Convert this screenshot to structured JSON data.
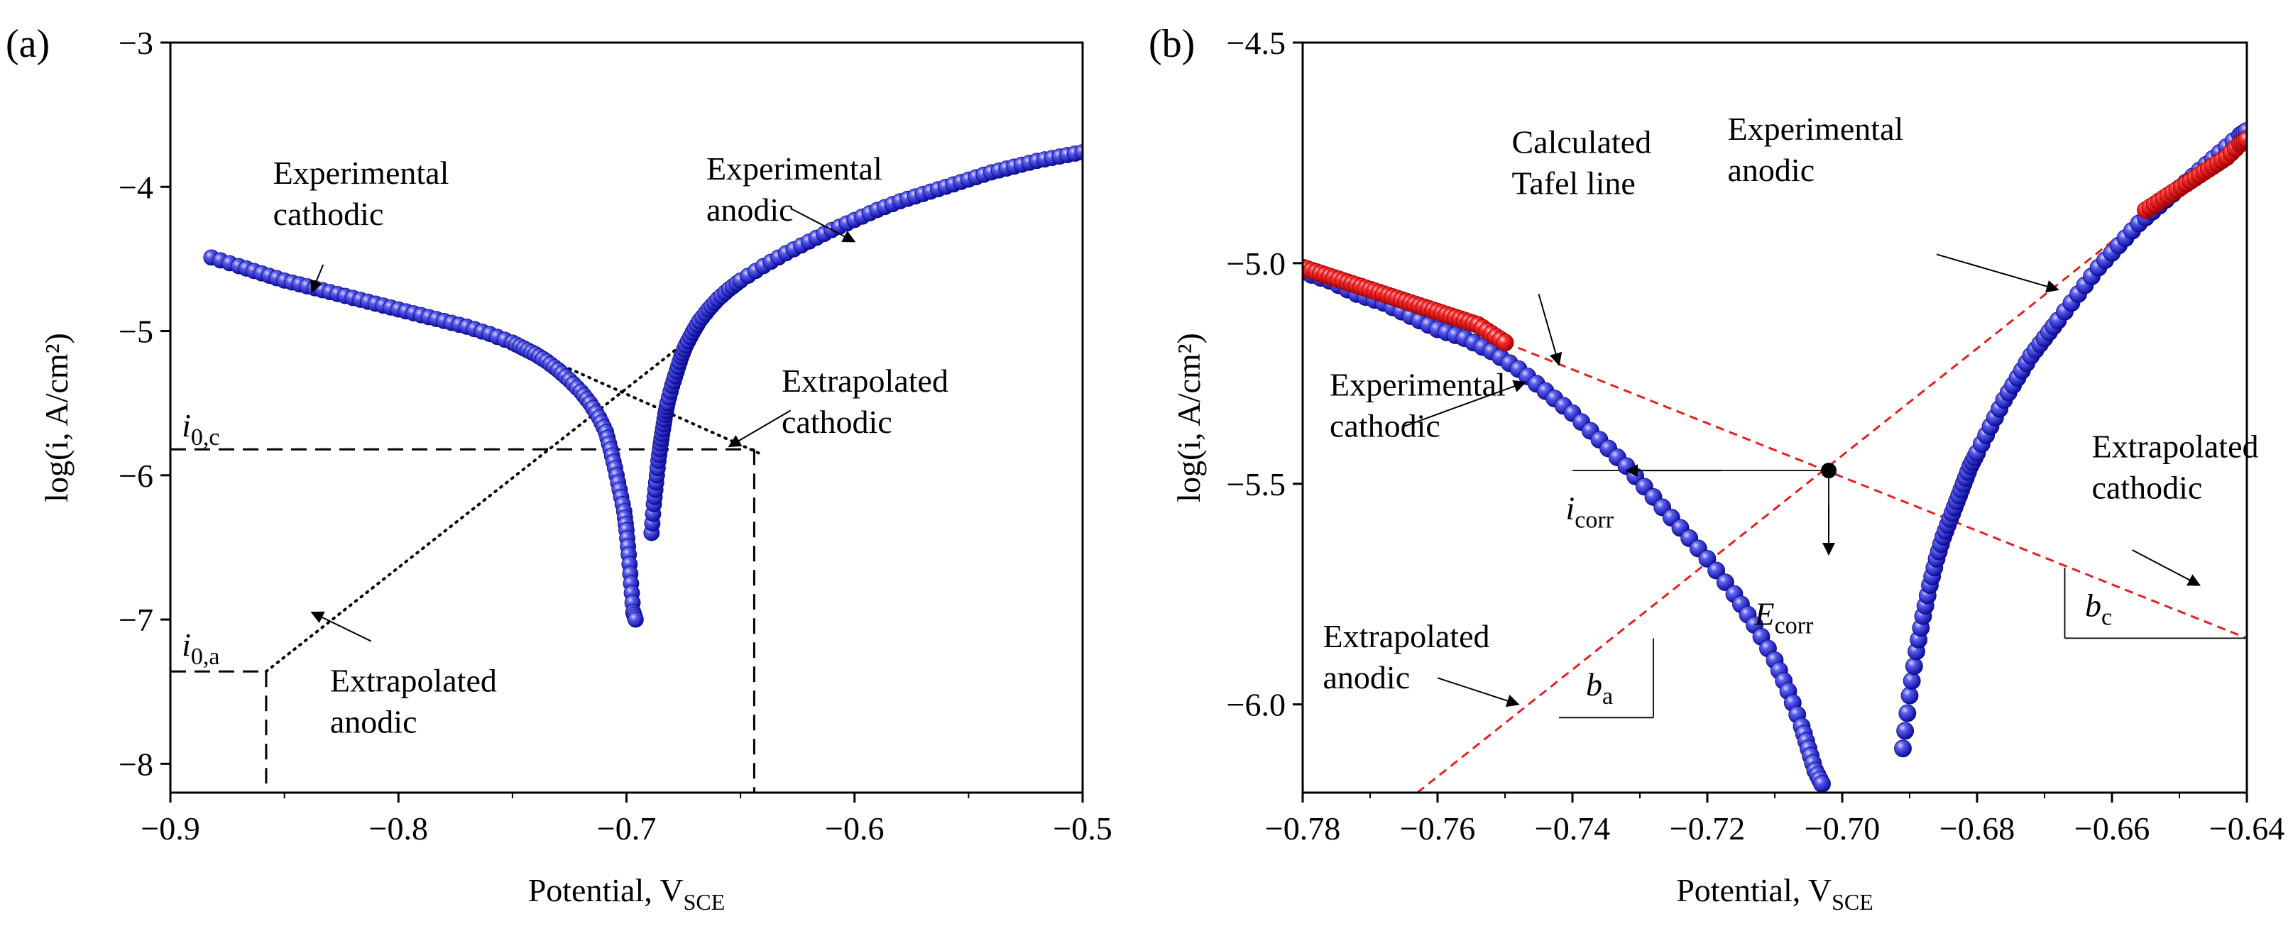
{
  "chart_data": [
    {
      "panel_label": "(a)",
      "type": "scatter",
      "xlabel": "Potential, V",
      "xlabel_sub": "SCE",
      "ylabel": "log(i, A/cm²)",
      "xlim": [
        -0.9,
        -0.5
      ],
      "ylim": [
        -8.2,
        -3
      ],
      "xticks": [
        -0.9,
        -0.8,
        -0.7,
        -0.6,
        -0.5
      ],
      "xtick_labels": [
        "−0.9",
        "−0.8",
        "−0.7",
        "−0.6",
        "−0.5"
      ],
      "yticks": [
        -3,
        -4,
        -5,
        -6,
        -7,
        -8
      ],
      "ytick_labels": [
        "−3",
        "−4",
        "−5",
        "−6",
        "−7",
        "−8"
      ],
      "series": [
        {
          "name": "Experimental cathodic",
          "color": "#2b2bd9",
          "x": [
            -0.882,
            -0.87,
            -0.86,
            -0.85,
            -0.84,
            -0.83,
            -0.82,
            -0.81,
            -0.8,
            -0.79,
            -0.78,
            -0.77,
            -0.76,
            -0.75,
            -0.745,
            -0.74,
            -0.735,
            -0.73,
            -0.725,
            -0.72,
            -0.716,
            -0.712,
            -0.709,
            -0.707,
            -0.705,
            -0.703,
            -0.701,
            -0.7,
            -0.699,
            -0.698,
            -0.697,
            -0.696
          ],
          "y": [
            -4.49,
            -4.55,
            -4.6,
            -4.65,
            -4.69,
            -4.73,
            -4.77,
            -4.81,
            -4.85,
            -4.89,
            -4.93,
            -4.97,
            -5.02,
            -5.08,
            -5.12,
            -5.16,
            -5.21,
            -5.27,
            -5.34,
            -5.42,
            -5.5,
            -5.6,
            -5.7,
            -5.82,
            -5.95,
            -6.1,
            -6.25,
            -6.38,
            -6.55,
            -6.75,
            -6.95,
            -7.0
          ]
        },
        {
          "name": "Experimental anodic",
          "color": "#2b2bd9",
          "x": [
            -0.689,
            -0.688,
            -0.687,
            -0.686,
            -0.685,
            -0.684,
            -0.683,
            -0.682,
            -0.68,
            -0.678,
            -0.676,
            -0.674,
            -0.671,
            -0.668,
            -0.664,
            -0.66,
            -0.655,
            -0.65,
            -0.64,
            -0.63,
            -0.62,
            -0.61,
            -0.6,
            -0.59,
            -0.58,
            -0.57,
            -0.56,
            -0.55,
            -0.54,
            -0.53,
            -0.52,
            -0.51,
            -0.5
          ],
          "y": [
            -6.4,
            -6.2,
            -6.05,
            -5.9,
            -5.78,
            -5.68,
            -5.58,
            -5.5,
            -5.38,
            -5.28,
            -5.18,
            -5.1,
            -5.01,
            -4.93,
            -4.85,
            -4.78,
            -4.71,
            -4.65,
            -4.55,
            -4.46,
            -4.38,
            -4.3,
            -4.23,
            -4.16,
            -4.1,
            -4.05,
            -4.0,
            -3.95,
            -3.9,
            -3.86,
            -3.82,
            -3.79,
            -3.76
          ]
        }
      ],
      "lines": [
        {
          "name": "extrapolated-cathodic-line",
          "style": "dotted",
          "x1": -0.745,
          "y1": -5.12,
          "x2": -0.64,
          "y2": -5.86
        },
        {
          "name": "extrapolated-anodic-line",
          "style": "dotted",
          "x1": -0.858,
          "y1": -7.36,
          "x2": -0.672,
          "y2": -5.05
        },
        {
          "name": "i0c-hline",
          "style": "dashed",
          "x1": -0.9,
          "y1": -5.82,
          "x2": -0.644,
          "y2": -5.82
        },
        {
          "name": "i0c-vline",
          "style": "dashed",
          "x1": -0.644,
          "y1": -5.82,
          "x2": -0.644,
          "y2": -8.2
        },
        {
          "name": "i0a-hline",
          "style": "dashed",
          "x1": -0.9,
          "y1": -7.36,
          "x2": -0.858,
          "y2": -7.36
        },
        {
          "name": "i0a-vline",
          "style": "dashed",
          "x1": -0.858,
          "y1": -7.36,
          "x2": -0.858,
          "y2": -8.2
        }
      ],
      "annotations": [
        {
          "name": "label-experimental-cathodic",
          "lines": [
            "Experimental",
            "cathodic"
          ],
          "x": -0.855,
          "y": -3.98,
          "anchor": "start"
        },
        {
          "name": "label-experimental-anodic",
          "lines": [
            "Experimental",
            "anodic"
          ],
          "x": -0.665,
          "y": -3.95,
          "anchor": "start"
        },
        {
          "name": "label-extrapolated-cathodic",
          "lines": [
            "Extrapolated",
            "cathodic"
          ],
          "x": -0.632,
          "y": -5.42,
          "anchor": "start"
        },
        {
          "name": "label-extrapolated-anodic",
          "lines": [
            "Extrapolated",
            "anodic"
          ],
          "x": -0.83,
          "y": -7.5,
          "anchor": "start"
        },
        {
          "name": "label-i0c",
          "main": "i",
          "sub": "0,c",
          "x": -0.895,
          "y": -5.73
        },
        {
          "name": "label-i0a",
          "main": "i",
          "sub": "0,a",
          "x": -0.895,
          "y": -7.25
        }
      ],
      "arrows": [
        {
          "name": "arrow-exp-cathodic",
          "x1": -0.833,
          "y1": -4.54,
          "x2": -0.838,
          "y2": -4.73
        },
        {
          "name": "arrow-exp-anodic",
          "x1": -0.628,
          "y1": -4.15,
          "x2": -0.6,
          "y2": -4.38
        },
        {
          "name": "arrow-extrap-cathodic",
          "x1": -0.628,
          "y1": -5.55,
          "x2": -0.655,
          "y2": -5.8
        },
        {
          "name": "arrow-extrap-anodic",
          "x1": -0.812,
          "y1": -7.15,
          "x2": -0.838,
          "y2": -6.95
        }
      ]
    },
    {
      "panel_label": "(b)",
      "type": "scatter",
      "xlabel": "Potential, V",
      "xlabel_sub": "SCE",
      "ylabel": "log(i, A/cm²)",
      "xlim": [
        -0.78,
        -0.64
      ],
      "ylim": [
        -6.2,
        -4.5
      ],
      "xticks": [
        -0.78,
        -0.76,
        -0.74,
        -0.72,
        -0.7,
        -0.68,
        -0.66,
        -0.64
      ],
      "xtick_labels": [
        "−0.78",
        "−0.76",
        "−0.74",
        "−0.72",
        "−0.70",
        "−0.68",
        "−0.66",
        "−0.64"
      ],
      "yticks": [
        -4.5,
        -5.0,
        -5.5,
        -6.0
      ],
      "ytick_labels": [
        "−4.5",
        "−5.0",
        "−5.5",
        "−6.0"
      ],
      "series": [
        {
          "name": "Experimental cathodic",
          "color": "#2b2bd9",
          "x": [
            -0.78,
            -0.776,
            -0.772,
            -0.768,
            -0.764,
            -0.76,
            -0.756,
            -0.752,
            -0.748,
            -0.744,
            -0.74,
            -0.736,
            -0.732,
            -0.728,
            -0.724,
            -0.72,
            -0.716,
            -0.713,
            -0.71,
            -0.708,
            -0.706,
            -0.705,
            -0.704,
            -0.703
          ],
          "y": [
            -5.02,
            -5.04,
            -5.07,
            -5.09,
            -5.12,
            -5.15,
            -5.17,
            -5.2,
            -5.24,
            -5.29,
            -5.34,
            -5.4,
            -5.46,
            -5.53,
            -5.6,
            -5.67,
            -5.75,
            -5.82,
            -5.9,
            -5.97,
            -6.05,
            -6.1,
            -6.15,
            -6.18
          ]
        },
        {
          "name": "Experimental anodic",
          "color": "#2b2bd9",
          "x": [
            -0.691,
            -0.69,
            -0.689,
            -0.688,
            -0.687,
            -0.686,
            -0.685,
            -0.684,
            -0.683,
            -0.682,
            -0.681,
            -0.68,
            -0.678,
            -0.676,
            -0.674,
            -0.672,
            -0.67,
            -0.668,
            -0.665,
            -0.662,
            -0.659,
            -0.656,
            -0.653,
            -0.65,
            -0.647,
            -0.644,
            -0.641,
            -0.64
          ],
          "y": [
            -6.1,
            -5.98,
            -5.88,
            -5.8,
            -5.73,
            -5.67,
            -5.62,
            -5.58,
            -5.54,
            -5.5,
            -5.46,
            -5.43,
            -5.37,
            -5.31,
            -5.26,
            -5.21,
            -5.17,
            -5.13,
            -5.07,
            -5.01,
            -4.96,
            -4.91,
            -4.87,
            -4.83,
            -4.79,
            -4.75,
            -4.71,
            -4.7
          ]
        },
        {
          "name": "Calculated Tafel line points (cathodic)",
          "color": "#e52020",
          "x": [
            -0.78,
            -0.778,
            -0.776,
            -0.774,
            -0.772,
            -0.77,
            -0.768,
            -0.766,
            -0.764,
            -0.762,
            -0.76,
            -0.758,
            -0.756,
            -0.754,
            -0.752,
            -0.75
          ],
          "y": [
            -5.01,
            -5.02,
            -5.03,
            -5.04,
            -5.05,
            -5.06,
            -5.07,
            -5.08,
            -5.09,
            -5.1,
            -5.11,
            -5.12,
            -5.13,
            -5.14,
            -5.16,
            -5.18
          ]
        },
        {
          "name": "Calculated Tafel line points (anodic)",
          "color": "#e52020",
          "x": [
            -0.655,
            -0.653,
            -0.651,
            -0.649,
            -0.647,
            -0.645,
            -0.643,
            -0.641,
            -0.64
          ],
          "y": [
            -4.88,
            -4.86,
            -4.84,
            -4.82,
            -4.8,
            -4.78,
            -4.76,
            -4.73,
            -4.72
          ]
        }
      ],
      "lines": [
        {
          "name": "tafel-cathodic-line",
          "style": "red-dashed",
          "x1": -0.75,
          "y1": -5.18,
          "x2": -0.64,
          "y2": -5.85
        },
        {
          "name": "tafel-anodic-line",
          "style": "red-dashed",
          "x1": -0.763,
          "y1": -6.2,
          "x2": -0.655,
          "y2": -4.89
        },
        {
          "name": "icorr-hline",
          "style": "thin",
          "x1": -0.74,
          "y1": -5.47,
          "x2": -0.702,
          "y2": -5.47
        },
        {
          "name": "ecorr-vline",
          "style": "thin",
          "x1": -0.702,
          "y1": -5.47,
          "x2": -0.702,
          "y2": -5.65
        },
        {
          "name": "ba-triangle-v",
          "style": "thin",
          "x1": -0.728,
          "y1": -5.85,
          "x2": -0.728,
          "y2": -6.03
        },
        {
          "name": "ba-triangle-h",
          "style": "thin",
          "x1": -0.728,
          "y1": -6.03,
          "x2": -0.742,
          "y2": -6.03
        },
        {
          "name": "bc-triangle-v",
          "style": "thin",
          "x1": -0.667,
          "y1": -5.69,
          "x2": -0.667,
          "y2": -5.85
        },
        {
          "name": "bc-triangle-h",
          "style": "thin",
          "x1": -0.667,
          "y1": -5.85,
          "x2": -0.64,
          "y2": -5.85
        }
      ],
      "point": {
        "name": "intersection-point",
        "x": -0.702,
        "y": -5.47
      },
      "annotations": [
        {
          "name": "label-calculated-tafel",
          "lines": [
            "Calculated",
            "Tafel line"
          ],
          "x": -0.749,
          "y": -4.75,
          "anchor": "start"
        },
        {
          "name": "label-experimental-anodic",
          "lines": [
            "Experimental",
            "anodic"
          ],
          "x": -0.717,
          "y": -4.72,
          "anchor": "start"
        },
        {
          "name": "label-experimental-cathodic",
          "lines": [
            "Experimental",
            "cathodic"
          ],
          "x": -0.776,
          "y": -5.3,
          "anchor": "start"
        },
        {
          "name": "label-extrapolated-cathodic",
          "lines": [
            "Extrapolated",
            "cathodic"
          ],
          "x": -0.663,
          "y": -5.44,
          "anchor": "start"
        },
        {
          "name": "label-extrapolated-anodic",
          "lines": [
            "Extrapolated",
            "anodic"
          ],
          "x": -0.777,
          "y": -5.87,
          "anchor": "start"
        },
        {
          "name": "label-icorr",
          "main": "i",
          "sub": "corr",
          "x": -0.741,
          "y": -5.58
        },
        {
          "name": "label-ecorr",
          "main": "E",
          "sub": "corr",
          "x": -0.713,
          "y": -5.82
        },
        {
          "name": "label-ba",
          "main": "b",
          "sub": "a",
          "x": -0.738,
          "y": -5.98
        },
        {
          "name": "label-bc",
          "main": "b",
          "sub": "c",
          "x": -0.664,
          "y": -5.8
        }
      ],
      "arrows": [
        {
          "name": "arrow-calculated-tafel",
          "x1": -0.745,
          "y1": -5.07,
          "x2": -0.742,
          "y2": -5.23
        },
        {
          "name": "arrow-exp-anodic",
          "x1": -0.686,
          "y1": -4.98,
          "x2": -0.668,
          "y2": -5.06
        },
        {
          "name": "arrow-exp-cathodic",
          "x1": -0.765,
          "y1": -5.37,
          "x2": -0.747,
          "y2": -5.27
        },
        {
          "name": "arrow-extrap-cathodic",
          "x1": -0.657,
          "y1": -5.65,
          "x2": -0.647,
          "y2": -5.73
        },
        {
          "name": "arrow-extrap-anodic",
          "x1": -0.76,
          "y1": -5.94,
          "x2": -0.748,
          "y2": -6.0
        },
        {
          "name": "arrow-icorr",
          "x1": -0.718,
          "y1": -5.47,
          "x2": -0.732,
          "y2": -5.47
        },
        {
          "name": "arrow-ecorr",
          "x1": -0.702,
          "y1": -5.55,
          "x2": -0.702,
          "y2": -5.66
        }
      ]
    }
  ]
}
